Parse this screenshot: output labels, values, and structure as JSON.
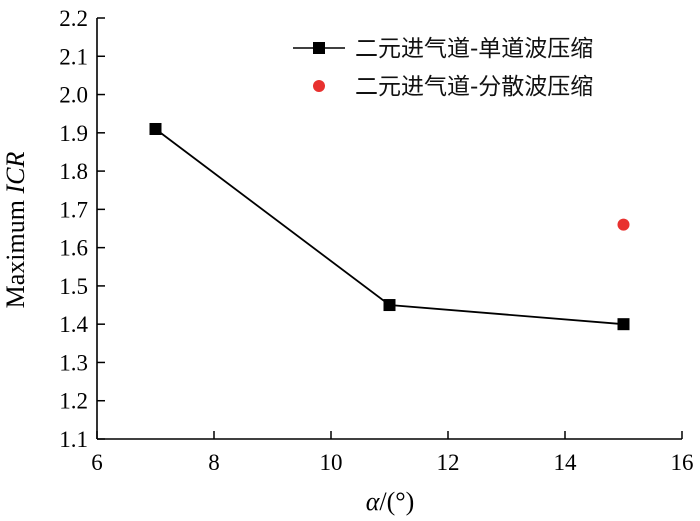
{
  "chart_data": {
    "type": "scatter",
    "xlabel_italic": "α",
    "xlabel_rest": "/(°)",
    "ylabel_prefix": "Maximum ",
    "ylabel_italic": "ICR",
    "xlim": [
      6,
      16
    ],
    "ylim": [
      1.1,
      2.2
    ],
    "xticks": [
      6,
      8,
      10,
      12,
      14,
      16
    ],
    "yticks": [
      1.1,
      1.2,
      1.3,
      1.4,
      1.5,
      1.6,
      1.7,
      1.8,
      1.9,
      2.0,
      2.1,
      2.2
    ],
    "ytick_labels": [
      "1.1",
      "1.2",
      "1.3",
      "1.4",
      "1.5",
      "1.6",
      "1.7",
      "1.8",
      "1.9",
      "2.0",
      "2.1",
      "2.2"
    ],
    "grid": false,
    "legend_position": "top-right",
    "series": [
      {
        "name": "二元进气道-单道波压缩",
        "marker": "square",
        "line": true,
        "color": "#000000",
        "x": [
          7,
          11,
          15
        ],
        "y": [
          1.91,
          1.45,
          1.4
        ]
      },
      {
        "name": "二元进气道-分散波压缩",
        "marker": "circle",
        "line": false,
        "color": "#e8312f",
        "x": [
          15
        ],
        "y": [
          1.66
        ]
      }
    ]
  }
}
